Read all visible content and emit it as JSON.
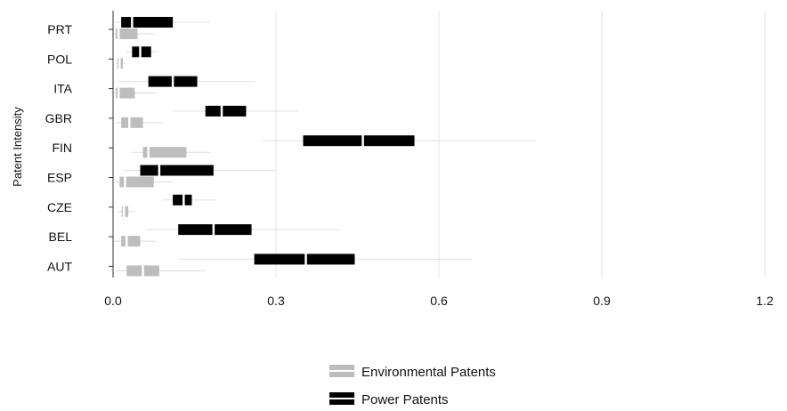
{
  "chart_data": {
    "type": "boxplot",
    "xlabel": "",
    "ylabel": "Patent Intensity",
    "xlim": [
      0,
      1.2
    ],
    "x_ticks": [
      "0.0",
      "0.3",
      "0.6",
      "0.9",
      "1.2"
    ],
    "x_tick_values": [
      0,
      0.3,
      0.6,
      0.9,
      1.2
    ],
    "categories": [
      "PRT",
      "POL",
      "ITA",
      "GBR",
      "FIN",
      "ESP",
      "CZE",
      "BEL",
      "AUT"
    ],
    "grid": true,
    "legend_position": "bottom-center",
    "series": [
      {
        "name": "Environmental Patents",
        "color": "#bdbdbd",
        "boxes": [
          {
            "category": "PRT",
            "whisker_low": 0.0,
            "q1": 0.005,
            "median": 0.01,
            "q3": 0.045,
            "whisker_high": 0.075
          },
          {
            "category": "POL",
            "whisker_low": 0.005,
            "q1": 0.008,
            "median": 0.012,
            "q3": 0.018,
            "whisker_high": 0.022
          },
          {
            "category": "ITA",
            "whisker_low": 0.0,
            "q1": 0.005,
            "median": 0.01,
            "q3": 0.04,
            "whisker_high": 0.08
          },
          {
            "category": "GBR",
            "whisker_low": 0.005,
            "q1": 0.015,
            "median": 0.03,
            "q3": 0.055,
            "whisker_high": 0.09
          },
          {
            "category": "FIN",
            "whisker_low": 0.035,
            "q1": 0.055,
            "median": 0.065,
            "q3": 0.135,
            "whisker_high": 0.18
          },
          {
            "category": "ESP",
            "whisker_low": 0.005,
            "q1": 0.012,
            "median": 0.022,
            "q3": 0.075,
            "whisker_high": 0.11
          },
          {
            "category": "CZE",
            "whisker_low": 0.01,
            "q1": 0.016,
            "median": 0.02,
            "q3": 0.028,
            "whisker_high": 0.04
          },
          {
            "category": "BEL",
            "whisker_low": 0.0,
            "q1": 0.015,
            "median": 0.025,
            "q3": 0.05,
            "whisker_high": 0.08
          },
          {
            "category": "AUT",
            "whisker_low": 0.005,
            "q1": 0.025,
            "median": 0.055,
            "q3": 0.085,
            "whisker_high": 0.17
          }
        ]
      },
      {
        "name": "Power Patents",
        "color": "#000000",
        "boxes": [
          {
            "category": "PRT",
            "whisker_low": 0.0,
            "q1": 0.015,
            "median": 0.035,
            "q3": 0.11,
            "whisker_high": 0.18
          },
          {
            "category": "POL",
            "whisker_low": 0.025,
            "q1": 0.035,
            "median": 0.05,
            "q3": 0.07,
            "whisker_high": 0.085
          },
          {
            "category": "ITA",
            "whisker_low": 0.01,
            "q1": 0.065,
            "median": 0.11,
            "q3": 0.155,
            "whisker_high": 0.26
          },
          {
            "category": "GBR",
            "whisker_low": 0.11,
            "q1": 0.17,
            "median": 0.2,
            "q3": 0.245,
            "whisker_high": 0.34
          },
          {
            "category": "FIN",
            "whisker_low": 0.275,
            "q1": 0.35,
            "median": 0.46,
            "q3": 0.555,
            "whisker_high": 0.78
          },
          {
            "category": "ESP",
            "whisker_low": 0.02,
            "q1": 0.05,
            "median": 0.085,
            "q3": 0.185,
            "whisker_high": 0.3
          },
          {
            "category": "CZE",
            "whisker_low": 0.09,
            "q1": 0.11,
            "median": 0.13,
            "q3": 0.145,
            "whisker_high": 0.19
          },
          {
            "category": "BEL",
            "whisker_low": 0.06,
            "q1": 0.12,
            "median": 0.185,
            "q3": 0.255,
            "whisker_high": 0.42
          },
          {
            "category": "AUT",
            "whisker_low": 0.12,
            "q1": 0.26,
            "median": 0.355,
            "q3": 0.445,
            "whisker_high": 0.66
          }
        ]
      }
    ]
  }
}
